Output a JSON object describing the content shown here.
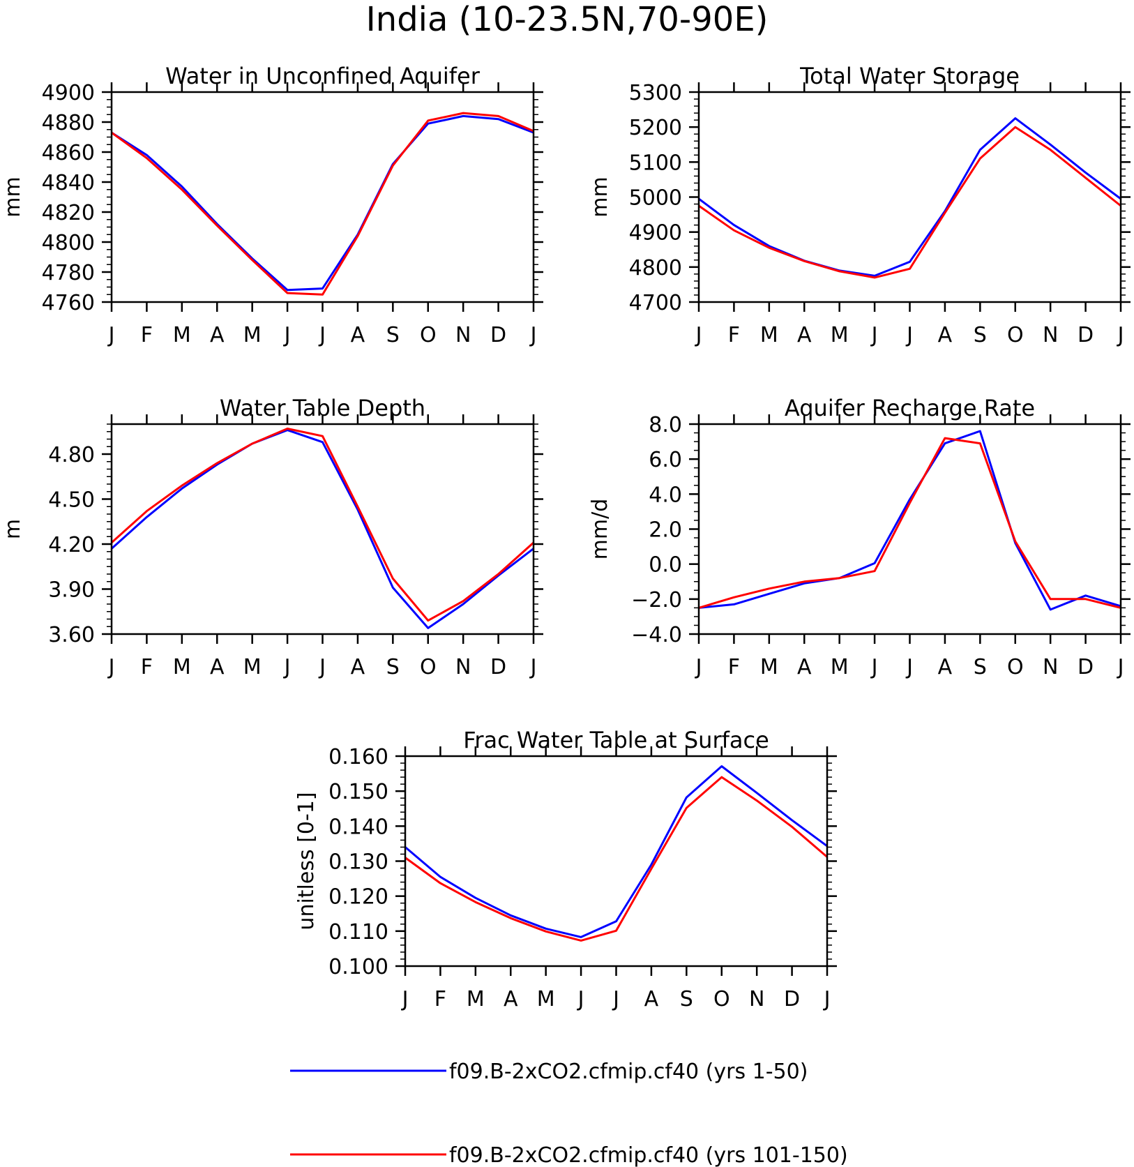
{
  "figure": {
    "title": "India (10-23.5N,70-90E)"
  },
  "chart_data": [
    {
      "type": "line",
      "title": "Water in Unconfined Aquifer",
      "ylabel": "mm",
      "ylim": [
        4760,
        4900
      ],
      "yticks": [
        4760,
        4780,
        4800,
        4820,
        4840,
        4860,
        4880,
        4900
      ],
      "ytick_labels": [
        "4760",
        "4780",
        "4800",
        "4820",
        "4840",
        "4860",
        "4880",
        "4900"
      ],
      "ytick_minor": 5,
      "categories": [
        "J",
        "F",
        "M",
        "A",
        "M",
        "J",
        "J",
        "A",
        "S",
        "O",
        "N",
        "D",
        "J"
      ],
      "series": [
        {
          "name": "f09.B-2xCO2.cfmip.cf40 (yrs 1-50)",
          "color": "#0000ff",
          "values": [
            4873,
            4858,
            4837,
            4812,
            4789,
            4768,
            4769,
            4805,
            4852,
            4879,
            4884,
            4882,
            4873
          ]
        },
        {
          "name": "f09.B-2xCO2.cfmip.cf40 (yrs 101-150)",
          "color": "#ff0000",
          "values": [
            4873,
            4856,
            4835,
            4811,
            4788,
            4766,
            4765,
            4804,
            4851,
            4881,
            4886,
            4884,
            4874
          ]
        }
      ]
    },
    {
      "type": "line",
      "title": "Total Water Storage",
      "ylabel": "mm",
      "ylim": [
        4700,
        5300
      ],
      "yticks": [
        4700,
        4800,
        4900,
        5000,
        5100,
        5200,
        5300
      ],
      "ytick_labels": [
        "4700",
        "4800",
        "4900",
        "5000",
        "5100",
        "5200",
        "5300"
      ],
      "ytick_minor": 20,
      "categories": [
        "J",
        "F",
        "M",
        "A",
        "M",
        "J",
        "J",
        "A",
        "S",
        "O",
        "N",
        "D",
        "J"
      ],
      "series": [
        {
          "name": "f09.B-2xCO2.cfmip.cf40 (yrs 1-50)",
          "color": "#0000ff",
          "values": [
            4995,
            4920,
            4860,
            4818,
            4790,
            4775,
            4815,
            4960,
            5135,
            5225,
            5150,
            5070,
            4995
          ]
        },
        {
          "name": "f09.B-2xCO2.cfmip.cf40 (yrs 101-150)",
          "color": "#ff0000",
          "values": [
            4975,
            4905,
            4855,
            4817,
            4788,
            4770,
            4795,
            4955,
            5110,
            5200,
            5135,
            5055,
            4975
          ]
        }
      ]
    },
    {
      "type": "line",
      "title": "Water Table Depth",
      "ylabel": "m",
      "ylim": [
        3.6,
        5.0
      ],
      "yticks": [
        3.6,
        3.9,
        4.2,
        4.5,
        4.8
      ],
      "ytick_labels": [
        "3.60",
        "3.90",
        "4.20",
        "4.50",
        "4.80"
      ],
      "ytick_minor": 0.05,
      "categories": [
        "J",
        "F",
        "M",
        "A",
        "M",
        "J",
        "J",
        "A",
        "S",
        "O",
        "N",
        "D",
        "J"
      ],
      "series": [
        {
          "name": "f09.B-2xCO2.cfmip.cf40 (yrs 1-50)",
          "color": "#0000ff",
          "values": [
            4.17,
            4.38,
            4.57,
            4.73,
            4.87,
            4.96,
            4.88,
            4.43,
            3.91,
            3.64,
            3.8,
            3.99,
            4.17
          ]
        },
        {
          "name": "f09.B-2xCO2.cfmip.cf40 (yrs 101-150)",
          "color": "#ff0000",
          "values": [
            4.21,
            4.42,
            4.59,
            4.74,
            4.87,
            4.97,
            4.92,
            4.45,
            3.97,
            3.69,
            3.82,
            4.0,
            4.21
          ]
        }
      ]
    },
    {
      "type": "line",
      "title": "Aquifer Recharge Rate",
      "ylabel": "mm/d",
      "ylim": [
        -4.0,
        8.0
      ],
      "yticks": [
        -4.0,
        -2.0,
        0.0,
        2.0,
        4.0,
        6.0,
        8.0
      ],
      "ytick_labels": [
        "−4.0",
        "−2.0",
        "0.0",
        "2.0",
        "4.0",
        "6.0",
        "8.0"
      ],
      "ytick_minor": 0.5,
      "categories": [
        "J",
        "F",
        "M",
        "A",
        "M",
        "J",
        "J",
        "A",
        "S",
        "O",
        "N",
        "D",
        "J"
      ],
      "series": [
        {
          "name": "f09.B-2xCO2.cfmip.cf40 (yrs 1-50)",
          "color": "#0000ff",
          "values": [
            -2.5,
            -2.3,
            -1.7,
            -1.1,
            -0.8,
            0.05,
            3.7,
            6.9,
            7.6,
            1.2,
            -2.6,
            -1.8,
            -2.4
          ]
        },
        {
          "name": "f09.B-2xCO2.cfmip.cf40 (yrs 101-150)",
          "color": "#ff0000",
          "values": [
            -2.5,
            -1.9,
            -1.4,
            -1.0,
            -0.8,
            -0.4,
            3.5,
            7.2,
            6.9,
            1.3,
            -2.0,
            -2.0,
            -2.5
          ]
        }
      ]
    },
    {
      "type": "line",
      "title": "Frac Water Table at Surface",
      "ylabel": "unitless [0-1]",
      "ylim": [
        0.1,
        0.16
      ],
      "yticks": [
        0.1,
        0.11,
        0.12,
        0.13,
        0.14,
        0.15,
        0.16
      ],
      "ytick_labels": [
        "0.100",
        "0.110",
        "0.120",
        "0.130",
        "0.140",
        "0.150",
        "0.160"
      ],
      "ytick_minor": 0.002,
      "categories": [
        "J",
        "F",
        "M",
        "A",
        "M",
        "J",
        "J",
        "A",
        "S",
        "O",
        "N",
        "D",
        "J"
      ],
      "series": [
        {
          "name": "f09.B-2xCO2.cfmip.cf40 (yrs 1-50)",
          "color": "#0000ff",
          "values": [
            0.134,
            0.1255,
            0.1195,
            0.1145,
            0.1107,
            0.1083,
            0.1128,
            0.129,
            0.1482,
            0.1571,
            0.1495,
            0.1417,
            0.1343
          ]
        },
        {
          "name": "f09.B-2xCO2.cfmip.cf40 (yrs 101-150)",
          "color": "#ff0000",
          "values": [
            0.131,
            0.1237,
            0.1183,
            0.1137,
            0.1099,
            0.1073,
            0.1101,
            0.1278,
            0.1452,
            0.154,
            0.1473,
            0.1398,
            0.1312
          ]
        }
      ]
    }
  ],
  "legend": {
    "items": [
      {
        "label": "f09.B-2xCO2.cfmip.cf40 (yrs 1-50)",
        "color": "#0000ff"
      },
      {
        "label": "f09.B-2xCO2.cfmip.cf40 (yrs 101-150)",
        "color": "#ff0000"
      }
    ]
  }
}
